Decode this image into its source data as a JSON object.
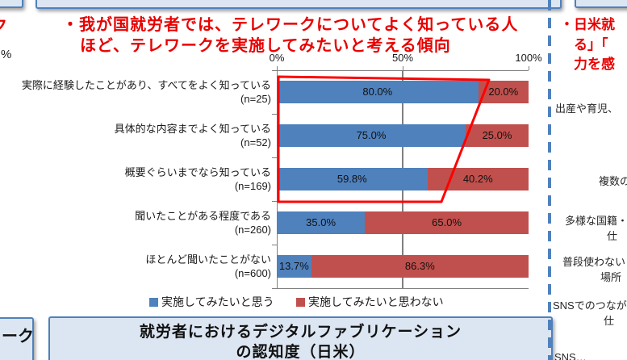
{
  "colors": {
    "bar_blue": "#4F81BD",
    "bar_red": "#C0504D",
    "title_red": "#E80000",
    "box_fill": "#DCE6F2",
    "box_border": "#4F81BD",
    "axis_gray": "#808080",
    "highlight_red": "#FF0000"
  },
  "edge_fragments": {
    "top_left_red_char": "ク",
    "left_percent": "%",
    "bottom_left_box_text": "ーク"
  },
  "header": {
    "title_line1": "・我が国就労者では、テレワークについてよく知っている人",
    "title_line2": "ほど、テレワークを実施してみたいと考える傾向"
  },
  "chart_data": {
    "type": "bar",
    "orientation": "horizontal",
    "stacked": true,
    "unit": "%",
    "x_ticks": [
      "0%",
      "50%",
      "100%"
    ],
    "xlim": [
      0,
      100
    ],
    "grid": "vertical line at 50%",
    "categories": [
      "実際に経験したことがあり、すべてをよく知っている",
      "具体的な内容までよく知っている",
      "概要ぐらいまでなら知っている",
      "聞いたことがある程度である",
      "ほとんど聞いたことがない"
    ],
    "category_n": [
      "(n=25)",
      "(n=52)",
      "(n=169)",
      "(n=260)",
      "(n=600)"
    ],
    "series": [
      {
        "name": "実施してみたいと思う",
        "color": "#4F81BD",
        "values": [
          80.0,
          75.0,
          59.8,
          35.0,
          13.7
        ]
      },
      {
        "name": "実施してみたいと思わない",
        "color": "#C0504D",
        "values": [
          20.0,
          25.0,
          40.2,
          65.0,
          86.3
        ]
      }
    ],
    "data_labels": [
      [
        "80.0%",
        "20.0%"
      ],
      [
        "75.0%",
        "25.0%"
      ],
      [
        "59.8%",
        "40.2%"
      ],
      [
        "35.0%",
        "65.0%"
      ],
      [
        "13.7%",
        "86.3%"
      ]
    ],
    "legend_position": "bottom",
    "annotation": "red trapezoid outline highlighting the top three bars"
  },
  "bottom_box": {
    "title_line1": "就労者におけるデジタルファブリケーション",
    "title_line2": "の認知度（日米）"
  },
  "right_panel": {
    "red_text_lines": [
      "・日米就",
      "る」「",
      "力を感"
    ],
    "category_fragments": [
      "出産や育児、",
      "複数の",
      "多様な国籍・",
      "仕",
      "普段使わない",
      "場所",
      "SNSでのつなが",
      "仕",
      "SNS…"
    ]
  }
}
